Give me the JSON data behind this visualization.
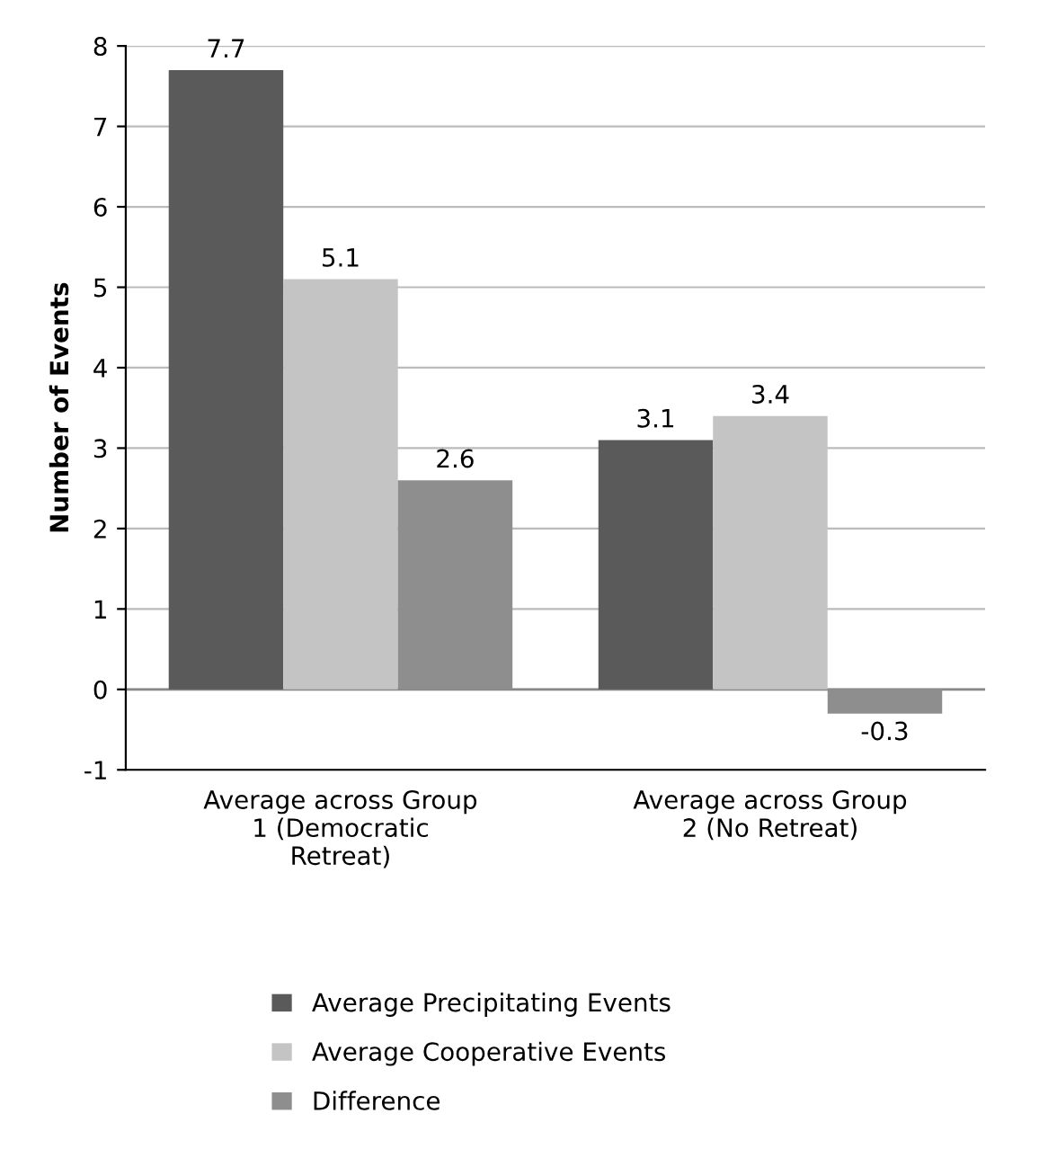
{
  "chart_data": {
    "type": "bar",
    "ylabel": "Number of Events",
    "categories": [
      "Average across Group\n1 (Democratic\nRetreat)",
      "Average across Group\n2 (No Retreat)"
    ],
    "series": [
      {
        "name": "Average Precipitating Events",
        "color": "#5a5a5a",
        "values": [
          7.7,
          3.1
        ]
      },
      {
        "name": "Average Cooperative Events",
        "color": "#c4c4c4",
        "values": [
          5.1,
          3.4
        ]
      },
      {
        "name": "Difference",
        "color": "#8e8e8e",
        "values": [
          2.6,
          -0.3
        ]
      }
    ],
    "ylim": [
      -1,
      8
    ],
    "yticks": [
      -1,
      0,
      1,
      2,
      3,
      4,
      5,
      6,
      7,
      8
    ],
    "grid": "y",
    "legend": "bottom",
    "data_labels": true
  }
}
